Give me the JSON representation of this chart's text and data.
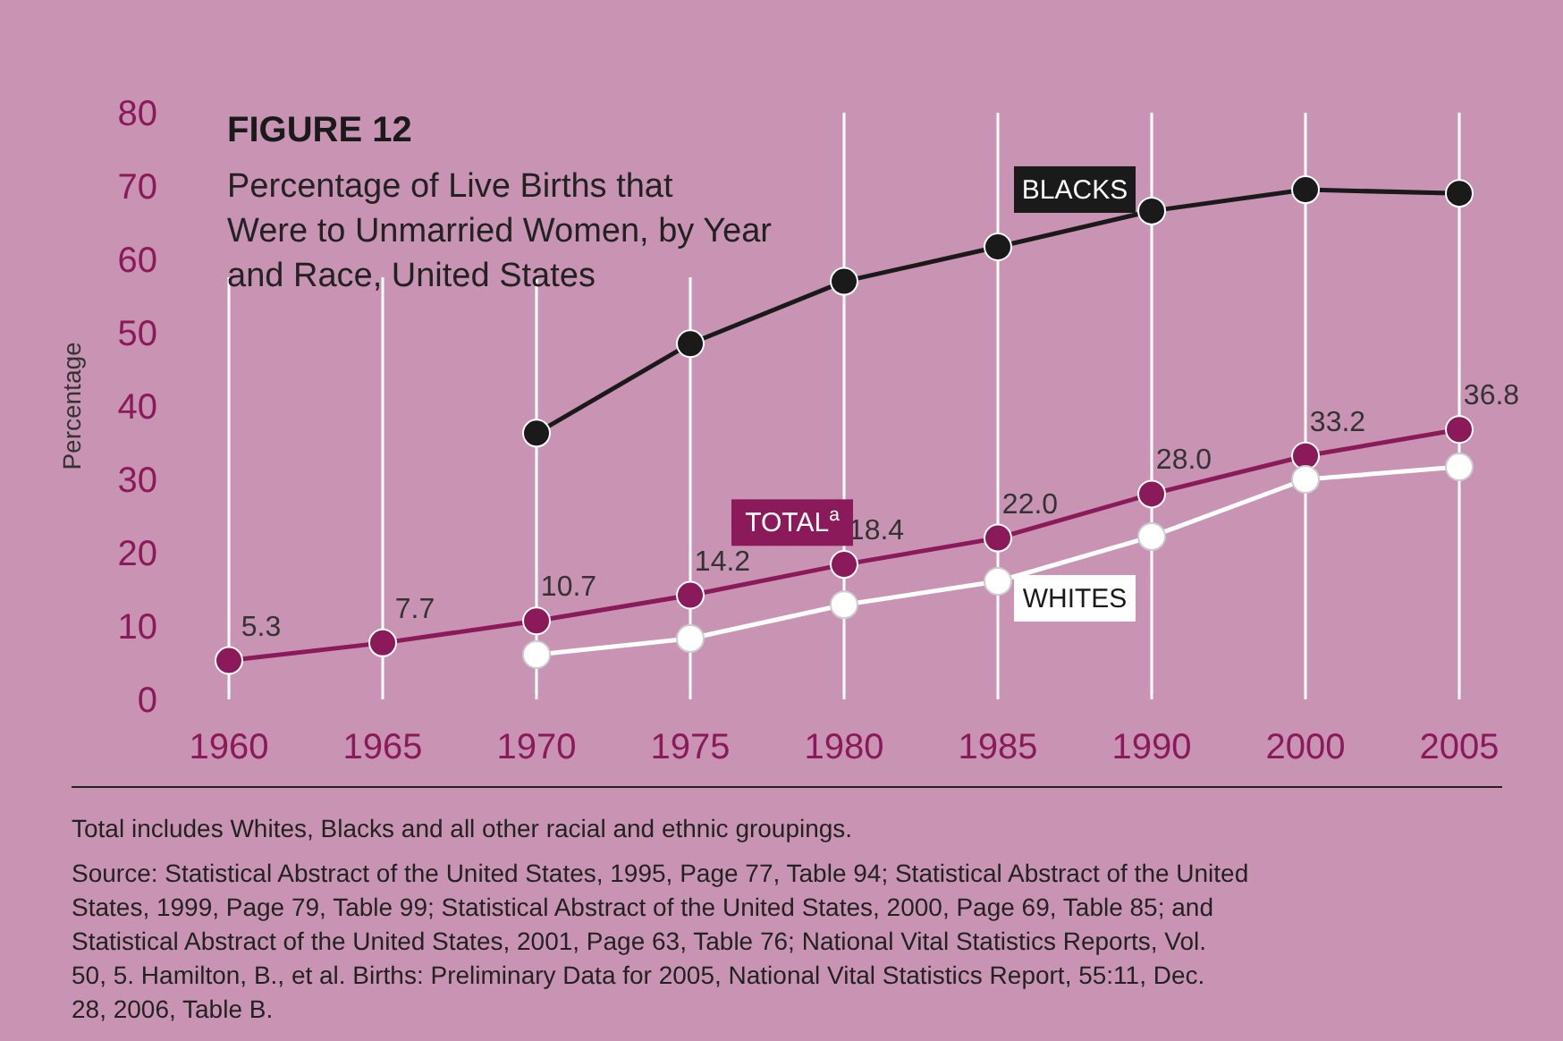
{
  "chart_data": {
    "type": "line",
    "title": "FIGURE 12",
    "subtitle": "Percentage of Live Births that Were to Unmarried Women, by Year and Race, United States",
    "ylabel": "Percentage",
    "categories": [
      "1960",
      "1965",
      "1970",
      "1975",
      "1980",
      "1985",
      "1990",
      "2000",
      "2005"
    ],
    "ylim": [
      0,
      80
    ],
    "yticks": [
      0,
      10,
      20,
      30,
      40,
      50,
      60,
      70,
      80
    ],
    "grid": "x",
    "marker": "circle",
    "line_style": "solid",
    "series": [
      {
        "name": "BLACKS",
        "color": "#1a1a1a",
        "values": [
          null,
          null,
          36.3,
          48.5,
          57,
          61.7,
          66.6,
          69.5,
          69
        ]
      },
      {
        "name": "TOTAL$^{a}$",
        "color": "#8b1a5a",
        "values": [
          5.3,
          7.7,
          10.7,
          14.2,
          18.4,
          22.0,
          28.0,
          33.2,
          36.8
        ],
        "value_labels": [
          "5.3",
          "7.7",
          "10.7",
          "14.2",
          "18.4",
          "22.0",
          "28.0",
          "33.2",
          "36.8"
        ]
      },
      {
        "name": "WHITES",
        "color": "#ffffff",
        "values": [
          null,
          null,
          6.1,
          8.3,
          12.9,
          16.1,
          22.2,
          30,
          31.7
        ]
      }
    ],
    "annotations": [
      "Total includes Whites, Blacks and all other racial and ethnic groupings.",
      "Source: Statistical Abstract of the United States, 1995, Page 77, Table 94; Statistical Abstract of the United States, 1999, Page 79, Table 99; Statistical Abstract of the United States, 2000, Page 69, Table 85; and Statistical Abstract of the United States, 2001, Page 63, Table 76; National Vital Statistics Reports, Vol. 50, 5. Hamilton, B., et al. Births: Preliminary Data for 2005, National Vital Statistics Report, 55:11, Dec. 28, 2006, Table B."
    ]
  }
}
